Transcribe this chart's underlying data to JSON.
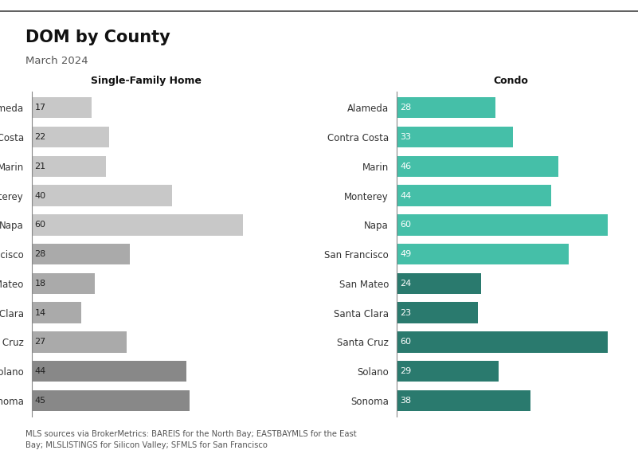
{
  "title": "DOM by County",
  "subtitle": "March 2024",
  "counties": [
    "Alameda",
    "Contra Costa",
    "Marin",
    "Monterey",
    "Napa",
    "San Francisco",
    "San Mateo",
    "Santa Clara",
    "Santa Cruz",
    "Solano",
    "Sonoma"
  ],
  "sfh_values": [
    17,
    22,
    21,
    40,
    60,
    28,
    18,
    14,
    27,
    44,
    45
  ],
  "condo_values": [
    28,
    33,
    46,
    44,
    60,
    49,
    24,
    23,
    60,
    29,
    38
  ],
  "sfh_colors": [
    "#c8c8c8",
    "#c8c8c8",
    "#c8c8c8",
    "#c8c8c8",
    "#c8c8c8",
    "#aaaaaa",
    "#aaaaaa",
    "#aaaaaa",
    "#aaaaaa",
    "#888888",
    "#888888"
  ],
  "condo_colors": [
    "#45bfa8",
    "#45bfa8",
    "#45bfa8",
    "#45bfa8",
    "#45bfa8",
    "#45bfa8",
    "#2a7a6e",
    "#2a7a6e",
    "#2a7a6e",
    "#2a7a6e",
    "#2a7a6e"
  ],
  "sfh_label": "Single-Family Home",
  "condo_label": "Condo",
  "footnote": "MLS sources via BrokerMetrics: BAREIS for the North Bay; EASTBAYMLS for the East\nBay; MLSLISTINGS for Silicon Valley; SFMLS for San Francisco",
  "bg_color": "#ffffff",
  "bar_height": 0.72,
  "xlim": 65
}
